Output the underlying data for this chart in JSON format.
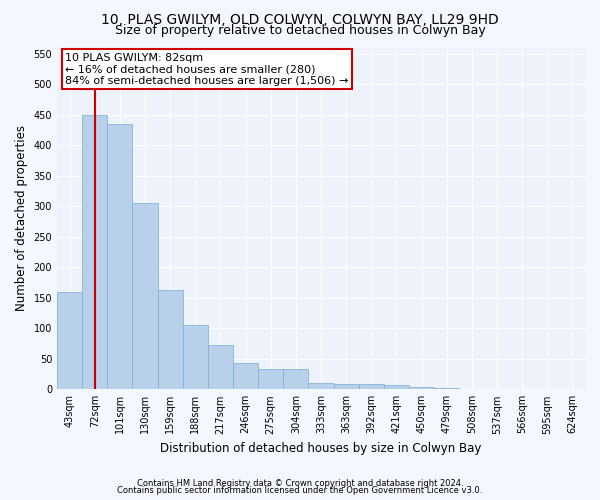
{
  "title": "10, PLAS GWILYM, OLD COLWYN, COLWYN BAY, LL29 9HD",
  "subtitle": "Size of property relative to detached houses in Colwyn Bay",
  "xlabel": "Distribution of detached houses by size in Colwyn Bay",
  "ylabel": "Number of detached properties",
  "footer1": "Contains HM Land Registry data © Crown copyright and database right 2024.",
  "footer2": "Contains public sector information licensed under the Open Government Licence v3.0.",
  "categories": [
    "43sqm",
    "72sqm",
    "101sqm",
    "130sqm",
    "159sqm",
    "188sqm",
    "217sqm",
    "246sqm",
    "275sqm",
    "304sqm",
    "333sqm",
    "363sqm",
    "392sqm",
    "421sqm",
    "450sqm",
    "479sqm",
    "508sqm",
    "537sqm",
    "566sqm",
    "595sqm",
    "624sqm"
  ],
  "values": [
    160,
    450,
    435,
    305,
    163,
    105,
    73,
    43,
    33,
    33,
    10,
    8,
    8,
    7,
    3,
    2,
    1,
    1,
    1,
    1,
    1
  ],
  "bar_color": "#b8d0ea",
  "bar_edge_color": "#7aadd4",
  "annotation_text1": "10 PLAS GWILYM: 82sqm",
  "annotation_text2": "← 16% of detached houses are smaller (280)",
  "annotation_text3": "84% of semi-detached houses are larger (1,506) →",
  "annotation_box_color": "#cc0000",
  "ylim": [
    0,
    560
  ],
  "yticks": [
    0,
    50,
    100,
    150,
    200,
    250,
    300,
    350,
    400,
    450,
    500,
    550
  ],
  "bg_color": "#eef2fa",
  "fig_bg_color": "#f5f7ff",
  "grid_color": "#ffffff",
  "title_fontsize": 10,
  "subtitle_fontsize": 9,
  "axis_label_fontsize": 8.5,
  "tick_fontsize": 7,
  "footer_fontsize": 6,
  "ann_fontsize": 8
}
